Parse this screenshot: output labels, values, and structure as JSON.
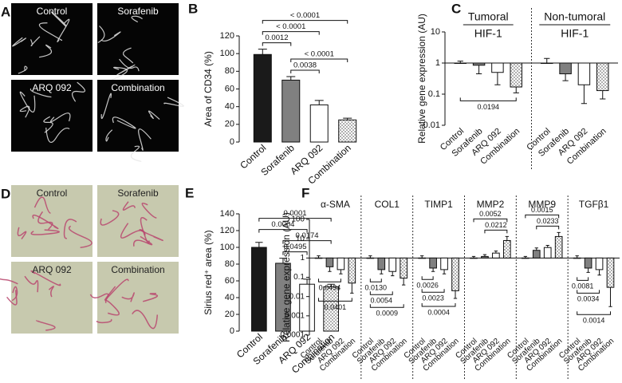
{
  "image_panels": [
    {
      "letter": "A",
      "labels": [
        "Control",
        "Sorafenib",
        "ARQ 092",
        "Combination"
      ]
    },
    {
      "letter": "D",
      "labels": [
        "Control",
        "Sorafenib",
        "ARQ 092",
        "Combination"
      ]
    }
  ],
  "chart_data": [
    {
      "type": "bar",
      "label": "B",
      "ylabel": "Area of CD34 (%)",
      "categories": [
        "Control",
        "Sorafenib",
        "ARQ 092",
        "Combination"
      ],
      "colors": [
        "#1a1a1a",
        "#808080",
        "#ffffff",
        "#b0b0b0"
      ],
      "checkered": [
        false,
        false,
        false,
        true
      ],
      "log": false,
      "ylim": [
        0,
        120
      ],
      "yticks": [
        0,
        20,
        40,
        60,
        80,
        100,
        120
      ],
      "values": [
        99,
        70,
        42,
        25
      ],
      "errors": [
        6,
        4,
        5,
        2
      ],
      "comparisons": [
        {
          "from": 1,
          "to": 2,
          "label": "0.0038"
        },
        {
          "from": 1,
          "to": 3,
          "label": "< 0.0001"
        },
        {
          "from": 0,
          "to": 1,
          "label": "0.0012"
        },
        {
          "from": 0,
          "to": 2,
          "label": "< 0.0001"
        },
        {
          "from": 0,
          "to": 3,
          "label": "< 0.0001"
        }
      ]
    },
    {
      "type": "bar",
      "label": "C",
      "ylabel": "Relative gene expression (AU)",
      "categories": [
        "Control",
        "Sorafenib",
        "ARQ 092",
        "Combination"
      ],
      "colors": [
        "#1a1a1a",
        "#808080",
        "#ffffff",
        "#b0b0b0"
      ],
      "checkered": [
        false,
        false,
        false,
        true
      ],
      "log": true,
      "ylim": [
        0.01,
        10
      ],
      "yticks": [
        0.01,
        0.1,
        1,
        10
      ],
      "groups": [
        {
          "title": "Tumoral",
          "subtitle": "HIF-1",
          "values": [
            1,
            0.85,
            0.5,
            0.17
          ],
          "errors": [
            0.15,
            0.4,
            0.3,
            0.06
          ],
          "comparisons": [
            {
              "from": 0,
              "to": 3,
              "label": "0.0194"
            }
          ]
        },
        {
          "title": "Non-tumoral",
          "subtitle": "HIF-1",
          "values": [
            1,
            0.45,
            0.2,
            0.13
          ],
          "errors": [
            0.4,
            0.18,
            0.15,
            0.06
          ],
          "comparisons": []
        }
      ]
    },
    {
      "type": "bar",
      "label": "E",
      "ylabel": "Sirius red⁺ area (%)",
      "categories": [
        "Control",
        "Sorafenib",
        "ARQ 092",
        "Combination"
      ],
      "colors": [
        "#1a1a1a",
        "#808080",
        "#ffffff",
        "#b0b0b0"
      ],
      "checkered": [
        false,
        false,
        false,
        true
      ],
      "log": false,
      "ylim": [
        0,
        140
      ],
      "yticks": [
        0,
        20,
        40,
        60,
        80,
        100,
        120,
        140
      ],
      "values": [
        100,
        81,
        56,
        53
      ],
      "errors": [
        6,
        6,
        6,
        3
      ],
      "comparisons": [
        {
          "from": 1,
          "to": 2,
          "label": "0.0495"
        },
        {
          "from": 1,
          "to": 3,
          "label": "0.0174"
        },
        {
          "from": 0,
          "to": 2,
          "label": "0.0004"
        },
        {
          "from": 0,
          "to": 3,
          "label": "0.0001"
        }
      ]
    },
    {
      "type": "bar",
      "label": "F",
      "ylabel": "Relative gene expression (AU)",
      "categories": [
        "Control",
        "Sorafenib",
        "ARQ 092",
        "Combination"
      ],
      "colors": [
        "#1a1a1a",
        "#808080",
        "#ffffff",
        "#b0b0b0"
      ],
      "checkered": [
        false,
        false,
        false,
        true
      ],
      "log": true,
      "ylim": [
        0.0001,
        100
      ],
      "yticks": [
        0.0001,
        0.001,
        0.01,
        0.1,
        1,
        10,
        100
      ],
      "groups": [
        {
          "title": "α-SMA",
          "values": [
            1,
            0.35,
            0.25,
            0.05
          ],
          "errors": [
            0.3,
            0.15,
            0.1,
            0.035
          ],
          "comparisons": [
            {
              "from": 0,
              "to": 2,
              "label": "0.0494"
            },
            {
              "from": 0,
              "to": 3,
              "label": "0.0401"
            }
          ]
        },
        {
          "title": "COL1",
          "values": [
            1,
            0.25,
            0.2,
            0.09
          ],
          "errors": [
            0.3,
            0.1,
            0.08,
            0.05
          ],
          "comparisons": [
            {
              "from": 0,
              "to": 1,
              "label": "0.0130"
            },
            {
              "from": 0,
              "to": 2,
              "label": "0.0054"
            },
            {
              "from": 0,
              "to": 3,
              "label": "0.0009"
            }
          ]
        },
        {
          "title": "TIMP1",
          "values": [
            1,
            0.3,
            0.25,
            0.02
          ],
          "errors": [
            0.3,
            0.1,
            0.1,
            0.012
          ],
          "comparisons": [
            {
              "from": 0,
              "to": 1,
              "label": "0.0026"
            },
            {
              "from": 0,
              "to": 2,
              "label": "0.0023"
            },
            {
              "from": 0,
              "to": 3,
              "label": "0.0004"
            }
          ]
        },
        {
          "title": "MMP2",
          "values": [
            1,
            1.2,
            1.8,
            8
          ],
          "errors": [
            0.2,
            0.3,
            0.5,
            5
          ],
          "comparisons": [
            {
              "from": 1,
              "to": 3,
              "label": "0.0212"
            },
            {
              "from": 0,
              "to": 3,
              "label": "0.0052"
            }
          ]
        },
        {
          "title": "MMP9",
          "values": [
            1,
            2.5,
            3.5,
            13
          ],
          "errors": [
            0.2,
            0.8,
            1,
            8
          ],
          "comparisons": [
            {
              "from": 1,
              "to": 3,
              "label": "0.0233"
            },
            {
              "from": 0,
              "to": 3,
              "label": "0.0015"
            }
          ]
        },
        {
          "title": "TGFβ1",
          "values": [
            1,
            0.3,
            0.25,
            0.03
          ],
          "errors": [
            0.3,
            0.12,
            0.12,
            0.027
          ],
          "comparisons": [
            {
              "from": 0,
              "to": 1,
              "label": "0.0081"
            },
            {
              "from": 0,
              "to": 2,
              "label": "0.0034"
            },
            {
              "from": 0,
              "to": 3,
              "label": "0.0014"
            }
          ]
        }
      ]
    }
  ]
}
